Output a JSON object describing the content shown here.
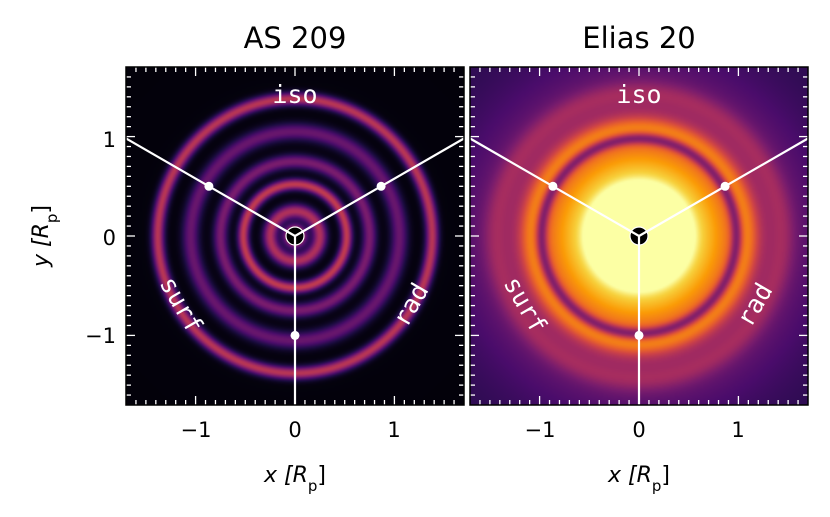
{
  "chart_data": {
    "type": "heatmap",
    "xlabel": "x [R",
    "xlabel_sub": "p",
    "ylabel": "y [R",
    "ylabel_sub": "p",
    "label_close": "]",
    "xlim": [
      -1.7,
      1.7
    ],
    "ylim": [
      -1.7,
      1.7
    ],
    "x_ticks": [
      -1,
      0,
      1
    ],
    "y_ticks": [
      -1,
      0,
      1
    ],
    "x_tick_labels": [
      "−1",
      "0",
      "1"
    ],
    "y_tick_labels": [
      "−1",
      "0",
      "1"
    ],
    "colormap": "inferno",
    "colors": {
      "colormap_stops": [
        "#000004",
        "#1b0c41",
        "#4a0c6b",
        "#781c6d",
        "#a52c60",
        "#cf4446",
        "#ed6925",
        "#fb9b06",
        "#f7d13d",
        "#fcffa4"
      ],
      "overlay": "#ffffff"
    },
    "sector_labels": [
      "iso",
      "rad",
      "surf"
    ],
    "sector_label_angles_deg": [
      90,
      -30,
      -150
    ],
    "sector_boundaries_deg": [
      30,
      150,
      270
    ],
    "marker_radius": 1.0,
    "panels": [
      {
        "title": "AS 209",
        "background_level": 0.02,
        "center_brightness": 0.85,
        "center_width": 0.07,
        "rings": [
          {
            "radius": 0.25,
            "amplitude": 0.45,
            "width": 0.05
          },
          {
            "radius": 0.52,
            "amplitude": 0.5,
            "width": 0.04
          },
          {
            "radius": 0.75,
            "amplitude": 0.32,
            "width": 0.05
          },
          {
            "radius": 1.05,
            "amplitude": 0.28,
            "width": 0.06
          },
          {
            "radius": 1.38,
            "amplitude": 0.48,
            "width": 0.045
          }
        ]
      },
      {
        "title": "Elias 20",
        "background_level": 0.28,
        "center_brightness": 0.92,
        "center_width": 0.75,
        "rings": [
          {
            "radius": 0.55,
            "amplitude": 0.06,
            "width": 0.04
          },
          {
            "radius": 0.98,
            "amplitude": -0.3,
            "width": 0.04
          },
          {
            "radius": 1.1,
            "amplitude": 0.18,
            "width": 0.07
          },
          {
            "radius": 1.45,
            "amplitude": 0.1,
            "width": 0.08
          }
        ]
      }
    ]
  }
}
